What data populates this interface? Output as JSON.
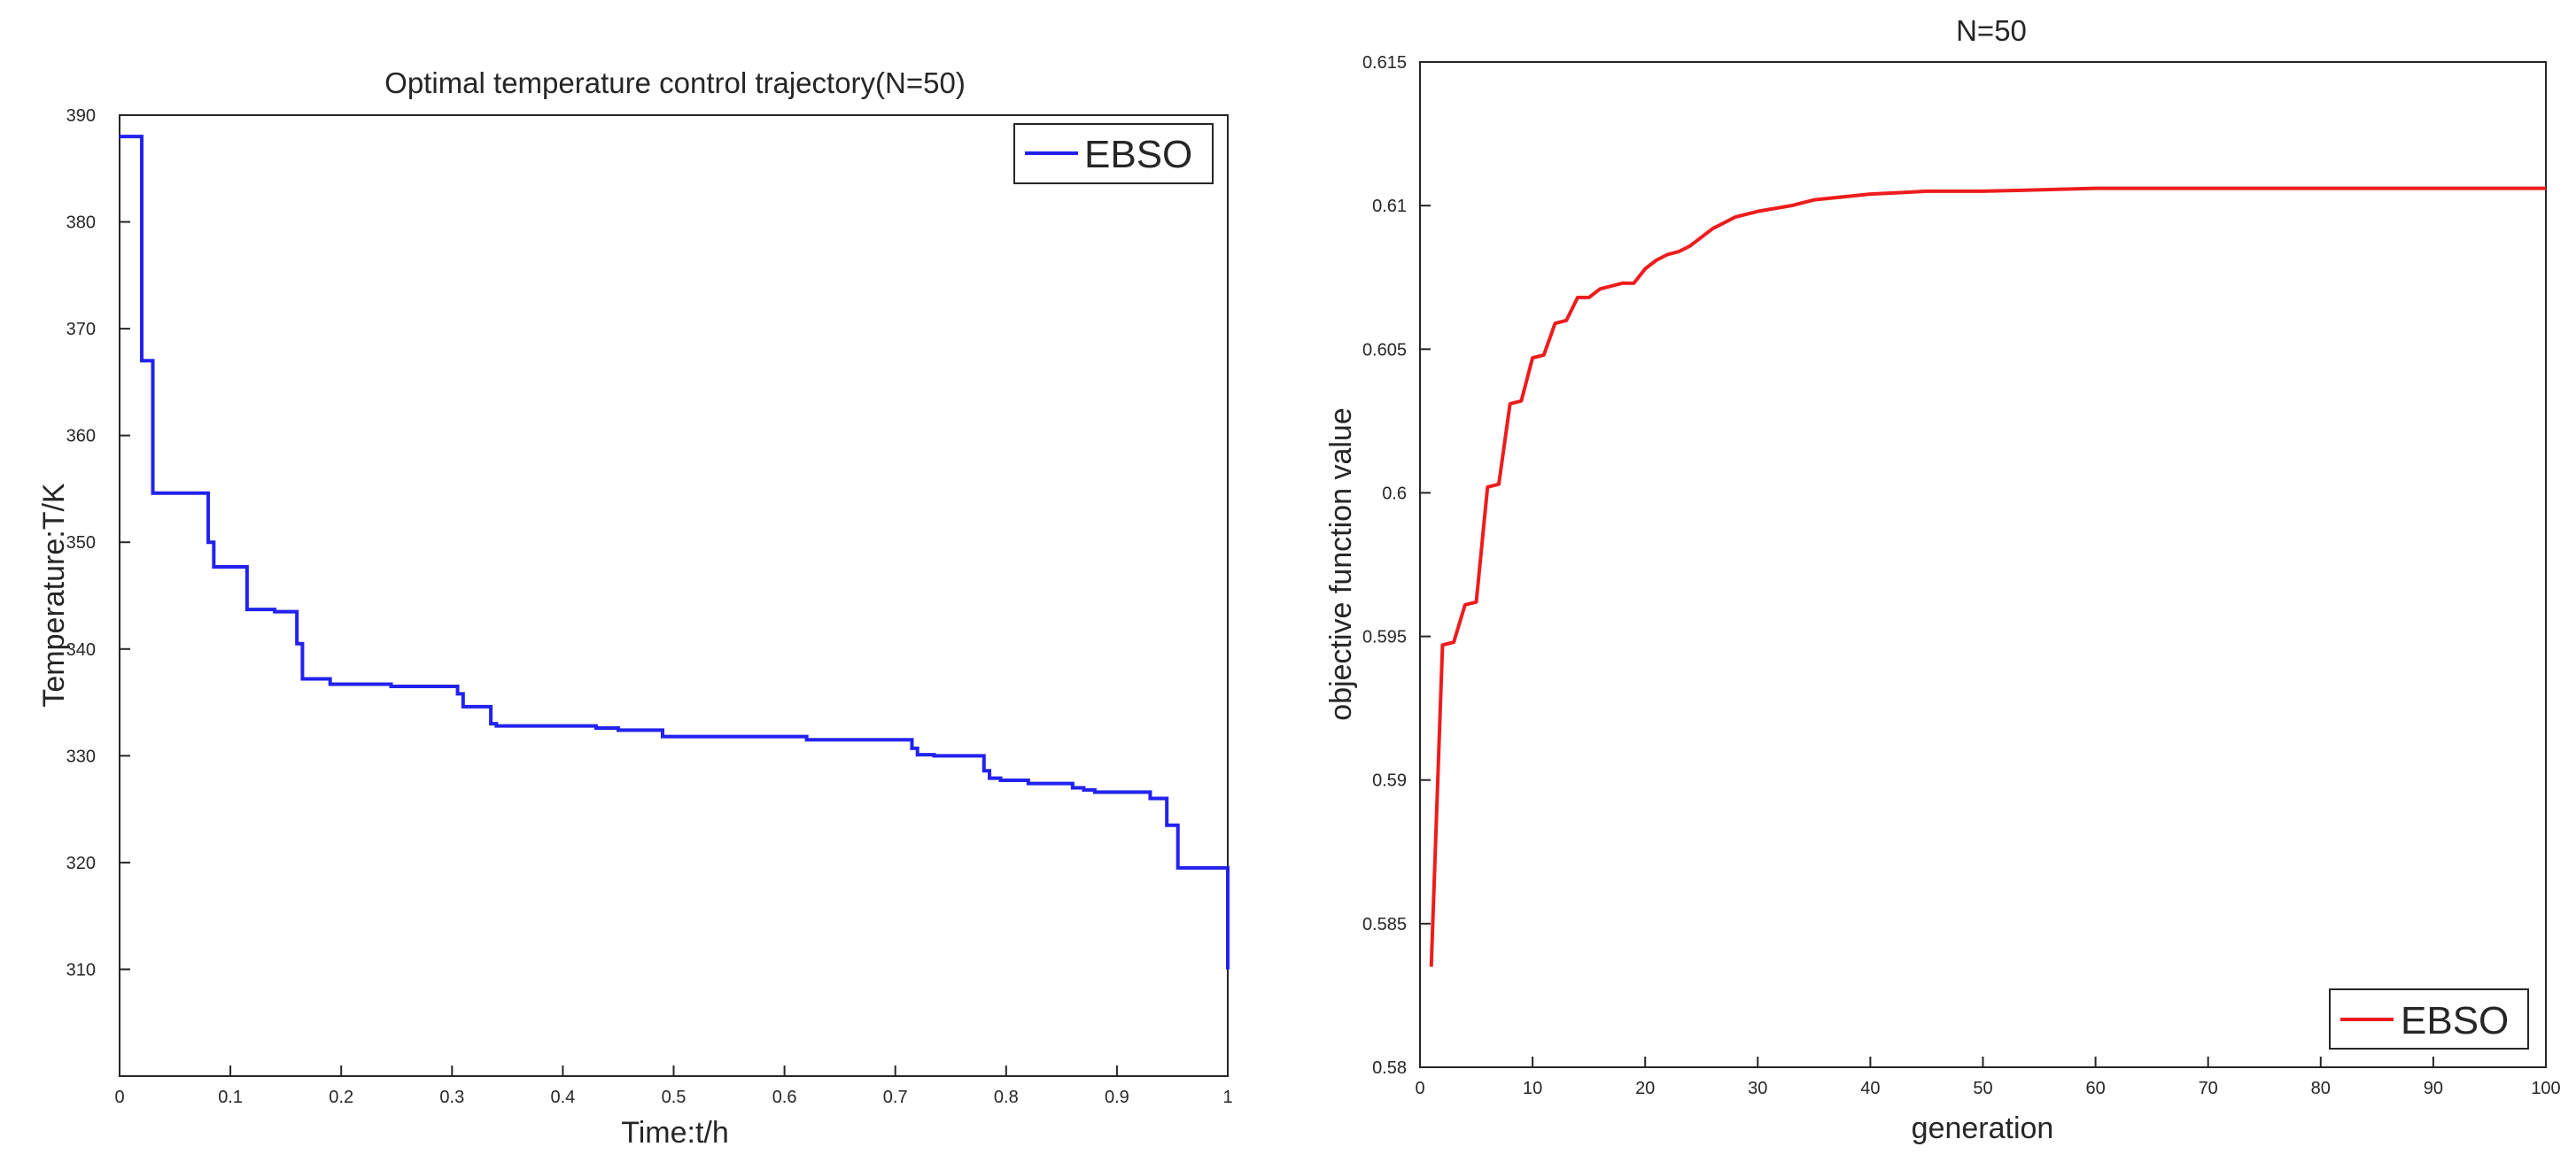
{
  "colors": {
    "left_series": "#2222f0",
    "right_series": "#ee1c1c",
    "axis": "#262626",
    "background": "#ffffff"
  },
  "chart_data": [
    {
      "type": "line",
      "title": "Optimal temperature control trajectory(N=50)",
      "xlabel": "Time:t/h",
      "ylabel": "Temperature:T/K",
      "xlim": [
        0,
        1
      ],
      "ylim": [
        300,
        390
      ],
      "xticks": [
        0,
        0.1,
        0.2,
        0.3,
        0.4,
        0.5,
        0.6,
        0.7,
        0.8,
        0.9,
        1
      ],
      "xtick_labels": [
        "0",
        "0.1",
        "0.2",
        "0.3",
        "0.4",
        "0.5",
        "0.6",
        "0.7",
        "0.8",
        "0.9",
        "1"
      ],
      "yticks": [
        310,
        320,
        330,
        340,
        350,
        360,
        370,
        380,
        390
      ],
      "ytick_labels": [
        "310",
        "320",
        "330",
        "340",
        "350",
        "360",
        "370",
        "380",
        "390"
      ],
      "grid": false,
      "legend": "top-right",
      "series": [
        {
          "name": "EBSO",
          "step": true,
          "color": "#2222f0",
          "x": [
            0,
            0.02,
            0.03,
            0.08,
            0.085,
            0.09,
            0.115,
            0.14,
            0.16,
            0.165,
            0.17,
            0.19,
            0.245,
            0.305,
            0.31,
            0.315,
            0.335,
            0.34,
            0.43,
            0.45,
            0.49,
            0.62,
            0.715,
            0.72,
            0.735,
            0.78,
            0.785,
            0.795,
            0.82,
            0.86,
            0.87,
            0.88,
            0.93,
            0.945,
            0.955,
            1
          ],
          "y": [
            388,
            367,
            354.6,
            350,
            347.7,
            347.7,
            343.7,
            343.5,
            340.5,
            337.2,
            337.2,
            336.7,
            336.5,
            335.8,
            334.6,
            334.6,
            333,
            332.8,
            332.6,
            332.4,
            331.8,
            331.5,
            330.7,
            330.1,
            330,
            328.6,
            327.9,
            327.7,
            327.4,
            327,
            326.8,
            326.6,
            326,
            323.5,
            319.5,
            310
          ]
        }
      ]
    },
    {
      "type": "line",
      "title": "N=50",
      "xlabel": "generation",
      "ylabel": "objective function value",
      "xlim": [
        0,
        100
      ],
      "ylim": [
        0.58,
        0.615
      ],
      "xticks": [
        0,
        10,
        20,
        30,
        40,
        50,
        60,
        70,
        80,
        90,
        100
      ],
      "xtick_labels": [
        "0",
        "10",
        "20",
        "30",
        "40",
        "50",
        "60",
        "70",
        "80",
        "90",
        "100"
      ],
      "yticks": [
        0.58,
        0.585,
        0.59,
        0.595,
        0.6,
        0.605,
        0.61,
        0.615
      ],
      "ytick_labels": [
        "0.58",
        "0.585",
        "0.59",
        "0.595",
        "0.6",
        "0.605",
        "0.61",
        "0.615"
      ],
      "grid": false,
      "legend": "bottom-right",
      "series": [
        {
          "name": "EBSO",
          "step": false,
          "color": "#ee1c1c",
          "x": [
            1,
            2,
            3,
            4,
            5,
            6,
            7,
            8,
            9,
            10,
            11,
            12,
            13,
            14,
            15,
            16,
            17,
            18,
            19,
            20,
            21,
            22,
            23,
            24,
            25,
            26,
            27,
            28,
            30,
            33,
            35,
            40,
            45,
            50,
            60,
            70,
            80,
            90,
            100
          ],
          "y": [
            0.5835,
            0.5947,
            0.5948,
            0.5961,
            0.5962,
            0.6002,
            0.6003,
            0.6031,
            0.6032,
            0.6047,
            0.6048,
            0.6059,
            0.606,
            0.6068,
            0.6068,
            0.6071,
            0.6072,
            0.6073,
            0.6073,
            0.6078,
            0.6081,
            0.6083,
            0.6084,
            0.6086,
            0.6089,
            0.6092,
            0.6094,
            0.6096,
            0.6098,
            0.61,
            0.6102,
            0.6104,
            0.6105,
            0.6105,
            0.6106,
            0.6106,
            0.6106,
            0.6106,
            0.6106
          ]
        }
      ]
    }
  ]
}
